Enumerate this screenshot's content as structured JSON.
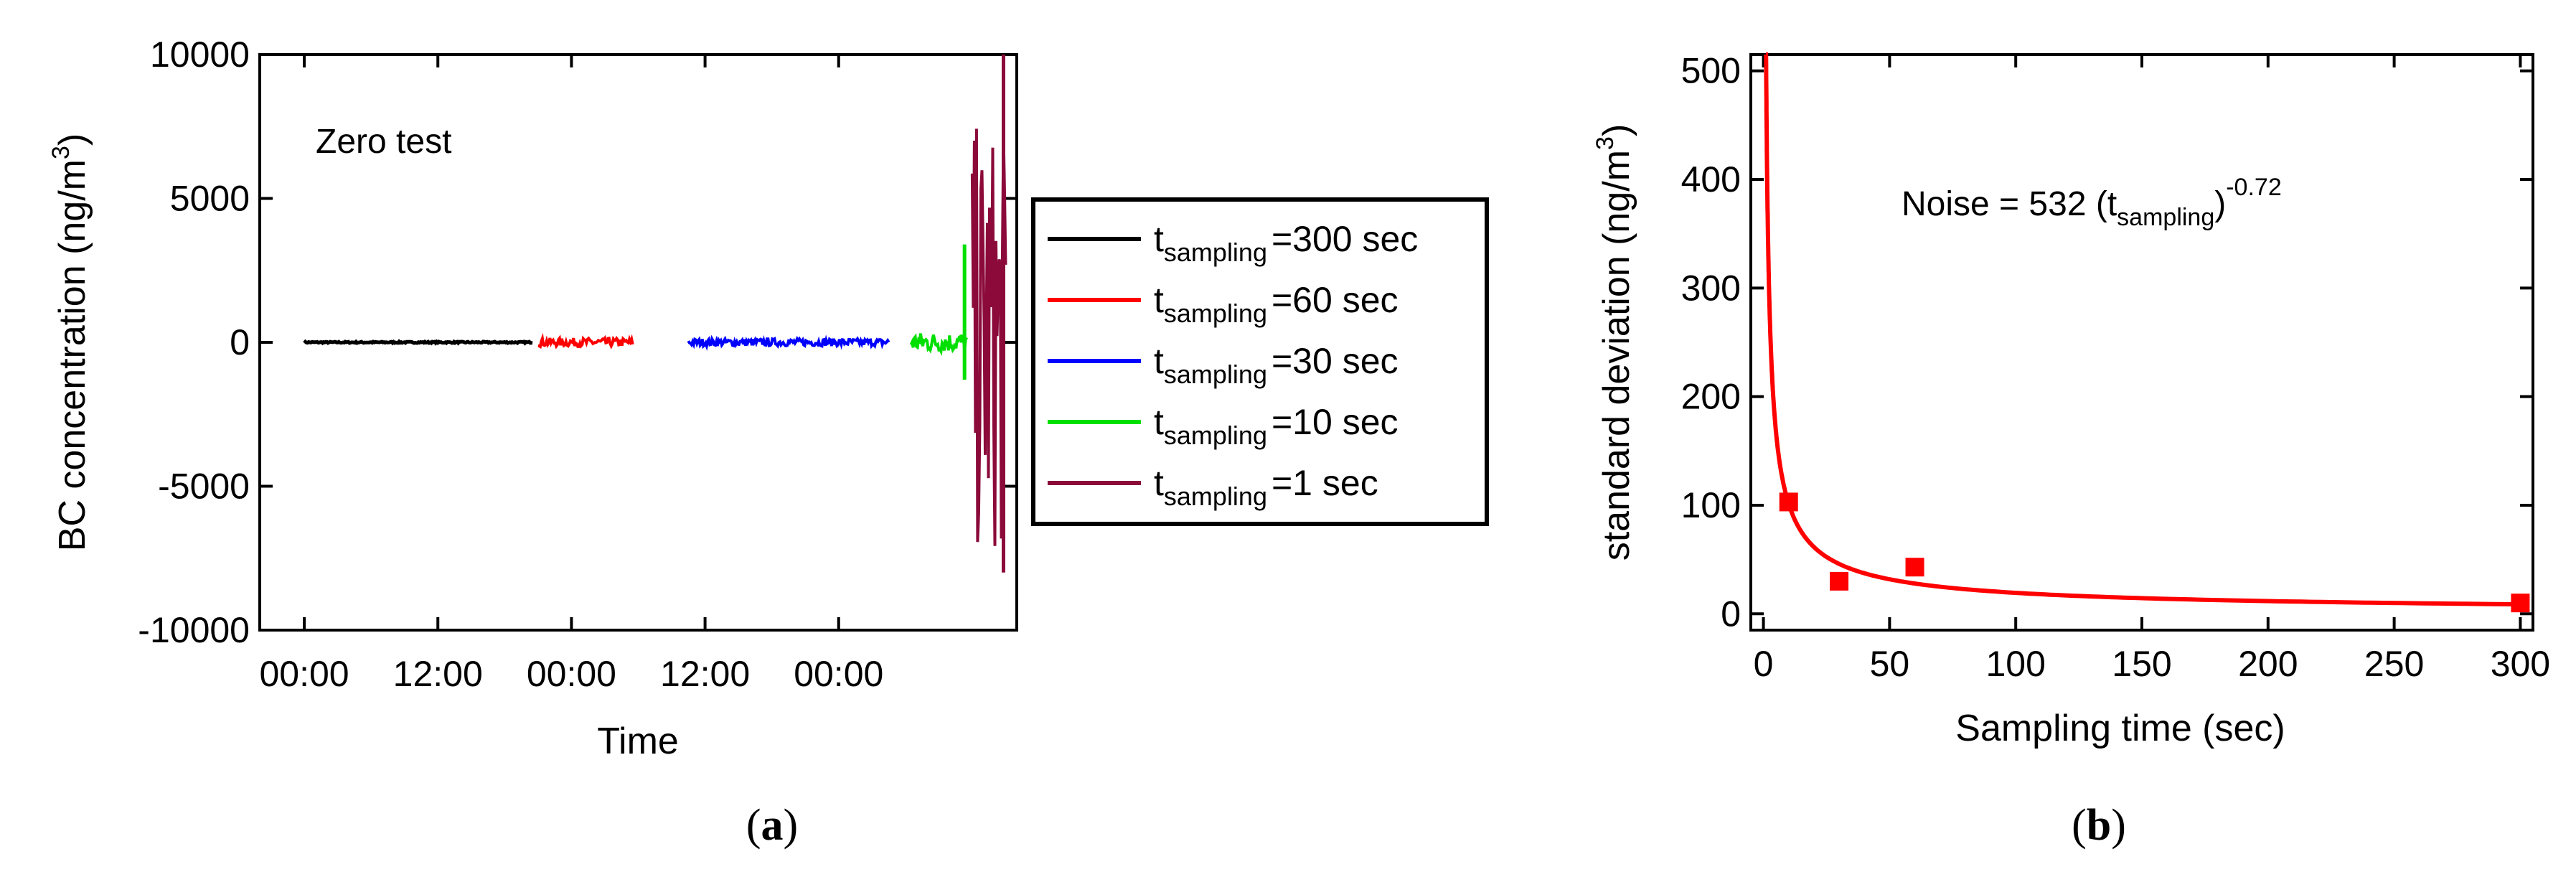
{
  "chart_data": [
    {
      "type": "line",
      "panel_label": "a",
      "xlabel": "Time",
      "ylabel": "BC concentration (ng/m",
      "ylabel_sup": "3",
      "ylabel_close": ")",
      "annotation": "Zero test",
      "ylim": [
        -10000,
        10000
      ],
      "yticks": [
        -10000,
        -5000,
        0,
        5000,
        10000
      ],
      "yticklabels": [
        "-10000",
        "-5000",
        "0",
        "5000",
        "10000"
      ],
      "xlim": [
        -4,
        64
      ],
      "xticks": [
        0,
        12,
        24,
        36,
        48
      ],
      "xticklabels": [
        "00:00",
        "12:00",
        "00:00",
        "12:00",
        "00:00"
      ],
      "grid": false,
      "legend_position": "right-outside",
      "legend_symbol": "t",
      "legend_sub": "sampling",
      "series": [
        {
          "name": "=300 sec",
          "color": "#000000",
          "x_range": [
            0,
            20.5
          ],
          "y_mean": 0,
          "spread": 25
        },
        {
          "name": "=60 sec",
          "color": "#ff0000",
          "x_range": [
            21,
            29.5
          ],
          "y_mean": 0,
          "spread": 150
        },
        {
          "name": "=30 sec",
          "color": "#0000ff",
          "x_range": [
            34.5,
            52.5
          ],
          "y_mean": 0,
          "spread": 130
        },
        {
          "name": "=10 sec",
          "color": "#00e000",
          "x_range": [
            54.5,
            59.5
          ],
          "y_mean": 0,
          "spread": 350,
          "spike": [
            -1300,
            3400
          ]
        },
        {
          "name": "=1 sec",
          "color": "#8b0a3a",
          "x_range": [
            60,
            63
          ],
          "y_mean": 0,
          "spread": 7500,
          "spike": [
            -8000,
            10000
          ]
        }
      ]
    },
    {
      "type": "scatter",
      "panel_label": "b",
      "xlabel": "Sampling time (sec)",
      "ylabel": "standard deviation (ng/m",
      "ylabel_sup": "3",
      "ylabel_close": ")",
      "xlim": [
        -5,
        305
      ],
      "ylim": [
        -15,
        515
      ],
      "xticks": [
        0,
        50,
        100,
        150,
        200,
        250,
        300
      ],
      "yticks": [
        0,
        100,
        200,
        300,
        400,
        500
      ],
      "grid": false,
      "points": [
        {
          "x": 10,
          "y": 103
        },
        {
          "x": 30,
          "y": 30
        },
        {
          "x": 60,
          "y": 43
        },
        {
          "x": 300,
          "y": 10
        }
      ],
      "point_color": "#ff0000",
      "fit": {
        "a": 532,
        "b": -0.72,
        "x_start": 1,
        "x_end": 300,
        "color": "#ff0000"
      },
      "annotation_prefix": "Noise = 532 (t",
      "annotation_sub": "sampling",
      "annotation_suffix": ")",
      "annotation_sup": "-0.72"
    }
  ]
}
